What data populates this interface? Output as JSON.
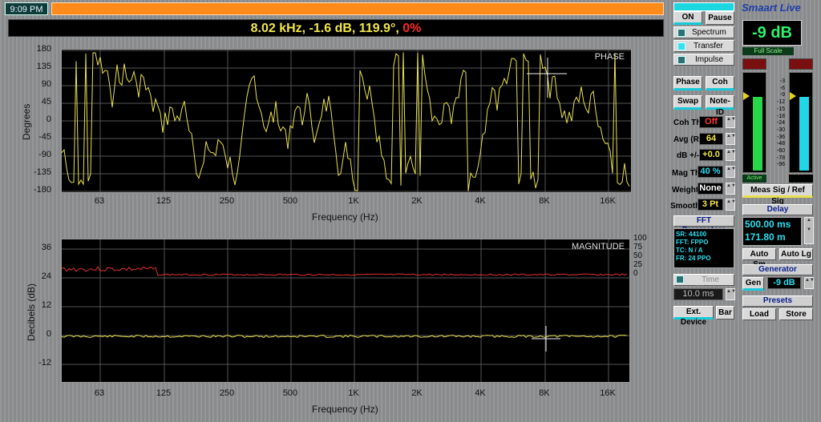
{
  "header": {
    "time": "9:09 PM",
    "readout": {
      "freq": "8.02 kHz, ",
      "db": "-1.6 dB, ",
      "phase": "119.9°, ",
      "coh": "0%"
    }
  },
  "phase_plot": {
    "title": "PHASE",
    "ylabel": "Degrees",
    "xlabel": "Frequency (Hz)",
    "yticks": [
      "180",
      "135",
      "90",
      "45",
      "0",
      "-45",
      "-90",
      "-135",
      "-180"
    ],
    "xticks": [
      "63",
      "125",
      "250",
      "500",
      "1K",
      "2K",
      "4K",
      "8K",
      "16K"
    ]
  },
  "mag_plot": {
    "title": "MAGNITUDE",
    "ylabel": "Decibels (dB)",
    "xlabel": "Frequency (Hz)",
    "yticks": [
      "36",
      "24",
      "12",
      "0",
      "-12"
    ],
    "rticks": [
      "100",
      "75",
      "50",
      "25",
      "0"
    ],
    "xticks": [
      "63",
      "125",
      "250",
      "500",
      "1K",
      "2K",
      "4K",
      "8K",
      "16K"
    ]
  },
  "chart_data": [
    {
      "type": "line",
      "title": "PHASE",
      "ylabel": "Degrees",
      "xlabel": "Frequency (Hz)",
      "ylim": [
        -180,
        180
      ],
      "x_log_ticks": [
        "63",
        "125",
        "250",
        "500",
        "1K",
        "2K",
        "4K",
        "8K",
        "16K"
      ],
      "series": [
        {
          "color": "#e8e050",
          "description_values": "wrapped phase trace"
        }
      ],
      "cursor": {
        "freq": "8.02 kHz",
        "phase": 119.9
      }
    },
    {
      "type": "line",
      "title": "MAGNITUDE",
      "ylabel": "Decibels (dB)",
      "xlabel": "Frequency (Hz)",
      "ylim": [
        -18,
        42
      ],
      "series": [
        {
          "color": "#e8e050",
          "level_db": -0.5
        },
        {
          "color": "#e03030",
          "level_coh": "near 100"
        }
      ],
      "cursor": {
        "freq": "8.02 kHz",
        "db": -1.6
      }
    }
  ],
  "controls": {
    "logo": "Smaart Live",
    "on": "ON",
    "pause": "Pause",
    "spectrum": "Spectrum",
    "transfer": "Transfer",
    "impulse": "Impulse",
    "level": "-9 dB",
    "full_scale": "Full Scale",
    "meter_scale": [
      "-3",
      "-6",
      "-9",
      "-12",
      "-15",
      "-18",
      "-24",
      "-30",
      "-36",
      "-48",
      "-60",
      "-78",
      "-96"
    ],
    "active": "Active",
    "meas_ref": "Meas Sig / Ref Sig",
    "phase": "Phase",
    "coh": "Coh",
    "swap": "Swap",
    "note_id": "Note-ID",
    "coh_th_label": "Coh Th",
    "coh_th": "Off",
    "avg_label": "Avg (R)",
    "avg": "64",
    "dbpm_label": "dB +/-",
    "dbpm": "+0.0",
    "magth_label": "Mag Th",
    "magth": "40 %",
    "weight_label": "Weight",
    "weight": "None",
    "smooth_label": "Smooth",
    "smooth": "3 Pt",
    "fft_params": "FFT Parameters",
    "fft_lines": [
      "SR: 44100",
      "FFT: FPPO",
      "TC: N / A",
      "FR: 24 PPO"
    ],
    "time_window": "Time Window",
    "tw_value": "10.0 ms",
    "ext_device": "Ext. Device",
    "bar": "Bar",
    "delay": "Delay",
    "delay_ms": "500.00 ms",
    "delay_m": "171.80 m",
    "auto_sm": "Auto Sm",
    "auto_lg": "Auto Lg",
    "generator": "Generator",
    "gen": "Gen",
    "gen_level": "-9 dB",
    "presets": "Presets",
    "load": "Load",
    "store": "Store"
  }
}
